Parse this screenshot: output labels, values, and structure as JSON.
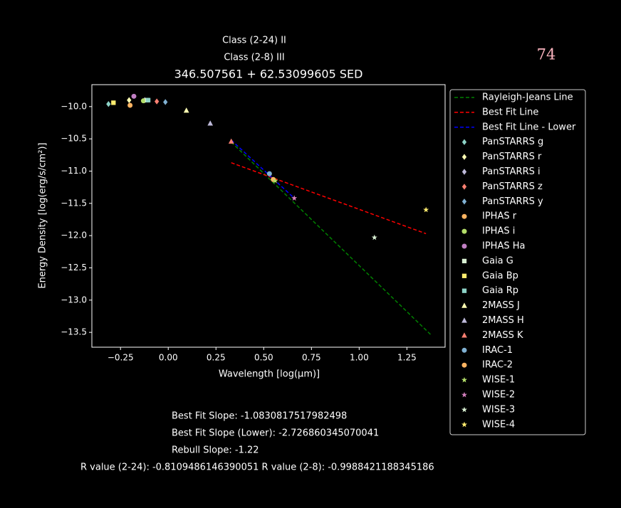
{
  "chart_data": {
    "type": "scatter",
    "title": "346.507561 + 62.53099605 SED",
    "subtitles": [
      "Class (2-24) II",
      "Class (2-8) III"
    ],
    "corner_label": "74",
    "x_label": "Wavelength [log(μm)]",
    "y_label": "Energy Density [log(erg/s/cm²)]",
    "xlim": [
      -0.4,
      1.45
    ],
    "ylim": [
      -13.73,
      -9.66
    ],
    "xticks": [
      {
        "value": -0.25,
        "label": "−0.25"
      },
      {
        "value": 0,
        "label": "0.00"
      },
      {
        "value": 0.25,
        "label": "0.25"
      },
      {
        "value": 0.5,
        "label": "0.50"
      },
      {
        "value": 0.75,
        "label": "0.75"
      },
      {
        "value": 1,
        "label": "1.00"
      },
      {
        "value": 1.25,
        "label": "1.25"
      }
    ],
    "yticks": [
      {
        "value": -10,
        "label": "−10.0"
      },
      {
        "value": -10.5,
        "label": "−10.5"
      },
      {
        "value": -11,
        "label": "−11.0"
      },
      {
        "value": -11.5,
        "label": "−11.5"
      },
      {
        "value": -12,
        "label": "−12.0"
      },
      {
        "value": -12.5,
        "label": "−12.5"
      },
      {
        "value": -13,
        "label": "−13.0"
      },
      {
        "value": -13.5,
        "label": "−13.5"
      }
    ],
    "series": [
      {
        "name": "Rayleigh-Jeans Line",
        "color": "#008000",
        "style": "dashed-line",
        "x": [
          0.33,
          1.38
        ],
        "values": [
          -10.55,
          -13.55
        ]
      },
      {
        "name": "Best Fit Line",
        "color": "#ff0000",
        "style": "dashed-line",
        "x": [
          0.33,
          1.35
        ],
        "values": [
          -10.87,
          -11.97
        ]
      },
      {
        "name": "Best Fit Line - Lower",
        "color": "#0000ff",
        "style": "dashed-line",
        "x": [
          0.33,
          0.66
        ],
        "values": [
          -10.52,
          -11.42
        ]
      },
      {
        "name": "PanSTARRS g",
        "color": "#8dd3c7",
        "marker": "diamond",
        "x": [
          -0.313
        ],
        "values": [
          -9.96
        ]
      },
      {
        "name": "PanSTARRS r",
        "color": "#ffffb3",
        "marker": "diamond",
        "x": [
          -0.205
        ],
        "values": [
          -9.9
        ]
      },
      {
        "name": "PanSTARRS i",
        "color": "#bebada",
        "marker": "diamond",
        "x": [
          -0.123
        ],
        "values": [
          -9.9
        ]
      },
      {
        "name": "PanSTARRS z",
        "color": "#fb8072",
        "marker": "diamond",
        "x": [
          -0.06
        ],
        "values": [
          -9.92
        ]
      },
      {
        "name": "PanSTARRS y",
        "color": "#80b1d3",
        "marker": "diamond",
        "x": [
          -0.015
        ],
        "values": [
          -9.93
        ]
      },
      {
        "name": "IPHAS r",
        "color": "#fdb462",
        "marker": "circle",
        "x": [
          -0.2
        ],
        "values": [
          -9.98
        ]
      },
      {
        "name": "IPHAS i",
        "color": "#b3de69",
        "marker": "circle",
        "x": [
          -0.13
        ],
        "values": [
          -9.91
        ]
      },
      {
        "name": "IPHAS Ha",
        "color": "#c27fc4",
        "marker": "circle",
        "x": [
          -0.18
        ],
        "values": [
          -9.84
        ]
      },
      {
        "name": "Gaia G",
        "color": "#d9f0d3",
        "marker": "square",
        "x": [
          -0.11
        ],
        "values": [
          -9.9
        ]
      },
      {
        "name": "Gaia Bp",
        "color": "#ffed6f",
        "marker": "square",
        "x": [
          -0.287
        ],
        "values": [
          -9.94
        ]
      },
      {
        "name": "Gaia Rp",
        "color": "#8dd3c7",
        "marker": "square",
        "x": [
          -0.105
        ],
        "values": [
          -9.9
        ]
      },
      {
        "name": "2MASS J",
        "color": "#ffffb3",
        "marker": "triangle",
        "x": [
          0.095
        ],
        "values": [
          -10.06
        ]
      },
      {
        "name": "2MASS H",
        "color": "#bebada",
        "marker": "triangle",
        "x": [
          0.22
        ],
        "values": [
          -10.26
        ]
      },
      {
        "name": "2MASS K",
        "color": "#fb8072",
        "marker": "triangle",
        "x": [
          0.33
        ],
        "values": [
          -10.54
        ]
      },
      {
        "name": "IRAC-1",
        "color": "#80b1d3",
        "marker": "circle",
        "x": [
          0.53
        ],
        "values": [
          -11.04
        ]
      },
      {
        "name": "IRAC-2",
        "color": "#fdb462",
        "marker": "circle",
        "x": [
          0.55
        ],
        "values": [
          -11.13
        ]
      },
      {
        "name": "WISE-1",
        "color": "#b3de69",
        "marker": "star",
        "x": [
          0.56
        ],
        "values": [
          -11.15
        ]
      },
      {
        "name": "WISE-2",
        "color": "#d37fbd",
        "marker": "star",
        "x": [
          0.66
        ],
        "values": [
          -11.42
        ]
      },
      {
        "name": "WISE-3",
        "color": "#d9f0d3",
        "marker": "star",
        "x": [
          1.08
        ],
        "values": [
          -12.03
        ]
      },
      {
        "name": "WISE-4",
        "color": "#ffed6f",
        "marker": "star",
        "x": [
          1.35
        ],
        "values": [
          -11.6
        ]
      }
    ],
    "notes": [
      "Best Fit Slope: -1.0830817517982498",
      "Best Fit Slope (Lower): -2.726860345070041",
      "Rebull Slope: -1.22",
      "R value (2-24): -0.8109486146390051   R value (2-8): -0.9988421188345186"
    ]
  }
}
